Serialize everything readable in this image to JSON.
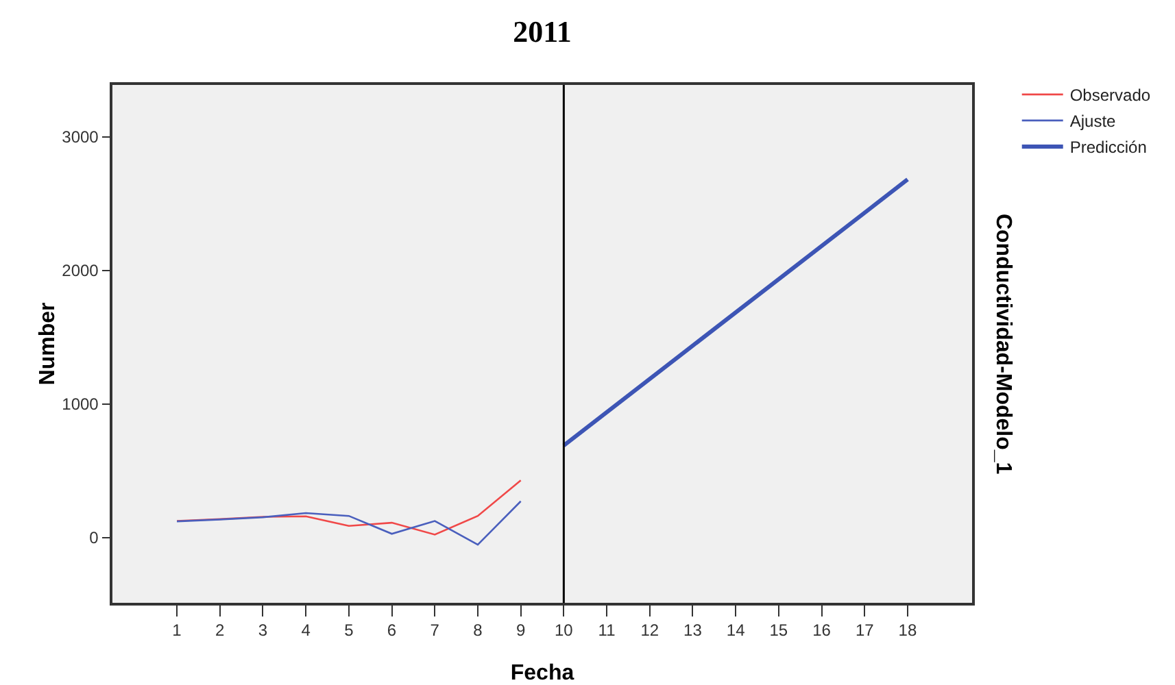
{
  "chart_data": {
    "type": "line",
    "title": "2011",
    "xlabel": "Fecha",
    "ylabel": "Number",
    "y2label": "Conductividad-Modelo_1",
    "x": [
      1,
      2,
      3,
      4,
      5,
      6,
      7,
      8,
      9
    ],
    "series": [
      {
        "name": "Observado",
        "color": "#f04848",
        "values": [
          123,
          137,
          154,
          158,
          86,
          110,
          21,
          161,
          428
        ]
      },
      {
        "name": "Ajuste",
        "color": "#4a5fbd",
        "values": [
          120,
          134,
          151,
          182,
          161,
          27,
          123,
          -55,
          271
        ]
      },
      {
        "name": "Predicción",
        "color": "#3d55b5",
        "x": [
          10,
          18
        ],
        "values": [
          689,
          2682
        ]
      }
    ],
    "xlim": [
      -0.5,
      19.5
    ],
    "xticks": [
      1,
      2,
      3,
      4,
      5,
      6,
      7,
      8,
      9,
      10,
      11,
      12,
      13,
      14,
      15,
      16,
      17,
      18
    ],
    "ylim": [
      -490,
      3390
    ],
    "yticks": [
      0,
      1000,
      2000,
      3000
    ],
    "ref_lines": [
      {
        "axis": "x",
        "value": 10,
        "color": "#000000"
      }
    ],
    "grid": false,
    "legend": "top right",
    "marker": "none",
    "line_style": "solid"
  }
}
